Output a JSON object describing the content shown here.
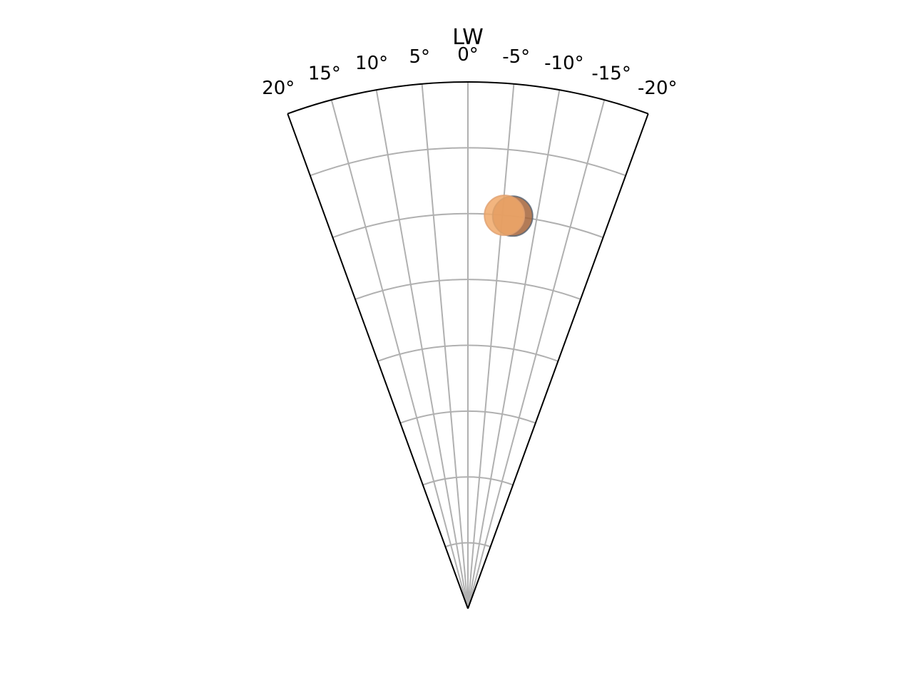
{
  "chart_data": {
    "type": "scatter",
    "projection": "polar-sector",
    "title": "LW",
    "theta_range_deg": [
      -20,
      20
    ],
    "theta_ticks_deg": [
      20,
      15,
      10,
      5,
      0,
      -5,
      -10,
      -15,
      -20
    ],
    "theta_tick_labels": [
      "20°",
      "15°",
      "10°",
      "5°",
      "0°",
      "-5°",
      "-10°",
      "-15°",
      "-20°"
    ],
    "r_range": [
      0,
      8
    ],
    "r_gridlines": [
      1,
      2,
      3,
      4,
      5,
      6,
      7
    ],
    "r_tick_labels_shown": false,
    "grid": true,
    "series": [
      {
        "points": [
          {
            "theta_deg": -6.5,
            "r": 6.0
          }
        ],
        "color": "#a5643a"
      },
      {
        "points": [
          {
            "theta_deg": -5.3,
            "r": 6.0
          }
        ],
        "color": "#f0a868"
      }
    ]
  }
}
